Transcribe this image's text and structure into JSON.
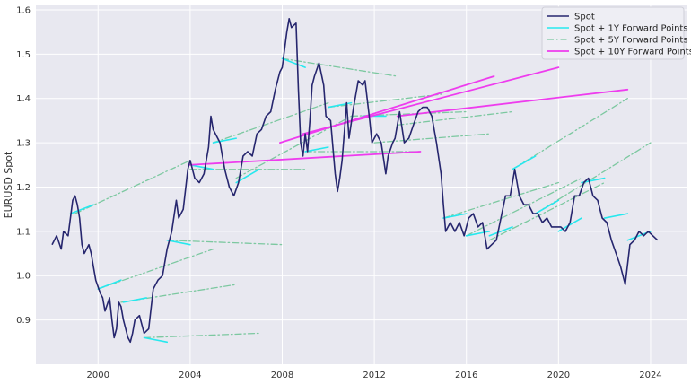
{
  "chart_data": {
    "type": "line",
    "title": "",
    "xlabel": "",
    "ylabel": "EURUSD Spot",
    "xlim": [
      1997.3,
      2025.6
    ],
    "ylim": [
      0.8,
      1.61
    ],
    "xticks": [
      2000,
      2004,
      2008,
      2012,
      2016,
      2020,
      2024
    ],
    "yticks": [
      0.9,
      1.0,
      1.1,
      1.2,
      1.3,
      1.4,
      1.5,
      1.6
    ],
    "xtick_labels": [
      "2000",
      "2004",
      "2008",
      "2012",
      "2016",
      "2020",
      "2024"
    ],
    "ytick_labels": [
      "0.9",
      "1.0",
      "1.1",
      "1.2",
      "1.3",
      "1.4",
      "1.5",
      "1.6"
    ],
    "grid": true,
    "background": "#e8e8f0",
    "legend_position": "top-right",
    "legend": [
      {
        "label": "Spot",
        "color": "#26266e",
        "style": "solid"
      },
      {
        "label": "Spot + 1Y Forward Points",
        "color": "#26e8ee",
        "style": "solid"
      },
      {
        "label": "Spot + 5Y Forward Points",
        "color": "#7cc8a0",
        "style": "dashdot"
      },
      {
        "label": "Spot + 10Y Forward Points",
        "color": "#ee3cee",
        "style": "solid"
      }
    ],
    "series": [
      {
        "name": "Spot",
        "color": "#26266e",
        "x": [
          1998.0,
          1998.2,
          1998.4,
          1998.5,
          1998.7,
          1998.9,
          1999.0,
          1999.1,
          1999.2,
          1999.3,
          1999.4,
          1999.6,
          1999.7,
          1999.8,
          1999.9,
          2000.1,
          2000.2,
          2000.3,
          2000.5,
          2000.6,
          2000.7,
          2000.8,
          2000.9,
          2001.0,
          2001.1,
          2001.3,
          2001.4,
          2001.5,
          2001.6,
          2001.8,
          2001.9,
          2002.0,
          2002.2,
          2002.4,
          2002.5,
          2002.6,
          2002.8,
          2003.0,
          2003.2,
          2003.4,
          2003.5,
          2003.7,
          2003.9,
          2004.0,
          2004.2,
          2004.4,
          2004.6,
          2004.8,
          2004.9,
          2005.0,
          2005.3,
          2005.5,
          2005.7,
          2005.9,
          2006.1,
          2006.3,
          2006.5,
          2006.7,
          2006.9,
          2007.1,
          2007.3,
          2007.5,
          2007.7,
          2007.9,
          2008.0,
          2008.2,
          2008.3,
          2008.4,
          2008.6,
          2008.7,
          2008.8,
          2008.9,
          2009.0,
          2009.1,
          2009.2,
          2009.3,
          2009.4,
          2009.6,
          2009.8,
          2009.9,
          2010.1,
          2010.3,
          2010.4,
          2010.5,
          2010.6,
          2010.8,
          2010.9,
          2011.1,
          2011.3,
          2011.5,
          2011.6,
          2011.8,
          2011.9,
          2012.1,
          2012.3,
          2012.5,
          2012.6,
          2012.8,
          2012.9,
          2013.1,
          2013.3,
          2013.5,
          2013.7,
          2013.9,
          2014.1,
          2014.3,
          2014.5,
          2014.7,
          2014.9,
          2015.0,
          2015.1,
          2015.3,
          2015.5,
          2015.7,
          2015.9,
          2016.1,
          2016.3,
          2016.5,
          2016.7,
          2016.9,
          2017.1,
          2017.3,
          2017.5,
          2017.7,
          2017.9,
          2018.1,
          2018.3,
          2018.5,
          2018.7,
          2018.9,
          2019.1,
          2019.3,
          2019.5,
          2019.7,
          2019.9,
          2020.1,
          2020.3,
          2020.5,
          2020.7,
          2020.9,
          2021.1,
          2021.3,
          2021.5,
          2021.7,
          2021.9,
          2022.1,
          2022.3,
          2022.5,
          2022.7,
          2022.9,
          2023.1,
          2023.3,
          2023.5,
          2023.7,
          2023.9,
          2024.1,
          2024.3
        ],
        "y": [
          1.07,
          1.09,
          1.06,
          1.1,
          1.09,
          1.17,
          1.18,
          1.16,
          1.13,
          1.07,
          1.05,
          1.07,
          1.05,
          1.02,
          0.99,
          0.96,
          0.95,
          0.92,
          0.95,
          0.9,
          0.86,
          0.88,
          0.94,
          0.93,
          0.9,
          0.86,
          0.85,
          0.87,
          0.9,
          0.91,
          0.89,
          0.87,
          0.88,
          0.97,
          0.98,
          0.99,
          1.0,
          1.06,
          1.1,
          1.17,
          1.13,
          1.15,
          1.24,
          1.26,
          1.22,
          1.21,
          1.23,
          1.29,
          1.36,
          1.33,
          1.3,
          1.24,
          1.2,
          1.18,
          1.21,
          1.27,
          1.28,
          1.27,
          1.32,
          1.33,
          1.36,
          1.37,
          1.42,
          1.46,
          1.47,
          1.55,
          1.58,
          1.56,
          1.57,
          1.42,
          1.3,
          1.27,
          1.32,
          1.28,
          1.35,
          1.43,
          1.45,
          1.48,
          1.43,
          1.36,
          1.35,
          1.23,
          1.19,
          1.22,
          1.26,
          1.39,
          1.31,
          1.38,
          1.44,
          1.43,
          1.44,
          1.35,
          1.3,
          1.32,
          1.3,
          1.23,
          1.27,
          1.3,
          1.31,
          1.37,
          1.3,
          1.31,
          1.34,
          1.37,
          1.38,
          1.38,
          1.36,
          1.3,
          1.23,
          1.16,
          1.1,
          1.12,
          1.1,
          1.12,
          1.09,
          1.13,
          1.14,
          1.11,
          1.12,
          1.06,
          1.07,
          1.08,
          1.13,
          1.18,
          1.18,
          1.24,
          1.18,
          1.16,
          1.16,
          1.14,
          1.14,
          1.12,
          1.13,
          1.11,
          1.11,
          1.11,
          1.1,
          1.12,
          1.18,
          1.18,
          1.21,
          1.22,
          1.18,
          1.17,
          1.13,
          1.12,
          1.08,
          1.05,
          1.02,
          0.98,
          1.07,
          1.08,
          1.1,
          1.09,
          1.1,
          1.09,
          1.08
        ]
      }
    ],
    "forward_segments": {
      "one_year": [
        [
          [
            1998.8,
            1.14
          ],
          [
            1999.8,
            1.16
          ]
        ],
        [
          [
            2000.0,
            0.97
          ],
          [
            2001.0,
            0.99
          ]
        ],
        [
          [
            2001.1,
            0.94
          ],
          [
            2002.1,
            0.95
          ]
        ],
        [
          [
            2002.0,
            0.86
          ],
          [
            2003.0,
            0.85
          ]
        ],
        [
          [
            2003.0,
            1.08
          ],
          [
            2004.0,
            1.07
          ]
        ],
        [
          [
            2004.0,
            1.25
          ],
          [
            2005.0,
            1.24
          ]
        ],
        [
          [
            2005.0,
            1.3
          ],
          [
            2006.0,
            1.31
          ]
        ],
        [
          [
            2006.0,
            1.21
          ],
          [
            2007.0,
            1.24
          ]
        ],
        [
          [
            2008.0,
            1.49
          ],
          [
            2009.0,
            1.47
          ]
        ],
        [
          [
            2009.0,
            1.28
          ],
          [
            2010.0,
            1.29
          ]
        ],
        [
          [
            2010.0,
            1.38
          ],
          [
            2011.0,
            1.39
          ]
        ],
        [
          [
            2011.5,
            1.36
          ],
          [
            2012.5,
            1.36
          ]
        ],
        [
          [
            2015.0,
            1.13
          ],
          [
            2016.0,
            1.14
          ]
        ],
        [
          [
            2016.0,
            1.09
          ],
          [
            2017.0,
            1.1
          ]
        ],
        [
          [
            2017.0,
            1.09
          ],
          [
            2018.0,
            1.11
          ]
        ],
        [
          [
            2018.0,
            1.24
          ],
          [
            2019.0,
            1.27
          ]
        ],
        [
          [
            2019.0,
            1.14
          ],
          [
            2020.0,
            1.17
          ]
        ],
        [
          [
            2020.0,
            1.1
          ],
          [
            2021.0,
            1.13
          ]
        ],
        [
          [
            2021.0,
            1.21
          ],
          [
            2022.0,
            1.22
          ]
        ],
        [
          [
            2022.0,
            1.13
          ],
          [
            2023.0,
            1.14
          ]
        ],
        [
          [
            2023.0,
            1.08
          ],
          [
            2024.0,
            1.1
          ]
        ]
      ],
      "five_year": [
        [
          [
            1999.0,
            1.14
          ],
          [
            2004.0,
            1.26
          ]
        ],
        [
          [
            2000.0,
            0.97
          ],
          [
            2005.0,
            1.06
          ]
        ],
        [
          [
            2001.0,
            0.94
          ],
          [
            2006.0,
            0.98
          ]
        ],
        [
          [
            2002.0,
            0.86
          ],
          [
            2007.0,
            0.87
          ]
        ],
        [
          [
            2003.0,
            1.08
          ],
          [
            2008.0,
            1.07
          ]
        ],
        [
          [
            2004.0,
            1.24
          ],
          [
            2009.0,
            1.24
          ]
        ],
        [
          [
            2005.0,
            1.3
          ],
          [
            2010.0,
            1.39
          ]
        ],
        [
          [
            2006.0,
            1.22
          ],
          [
            2011.0,
            1.36
          ]
        ],
        [
          [
            2008.0,
            1.49
          ],
          [
            2013.0,
            1.45
          ]
        ],
        [
          [
            2009.0,
            1.28
          ],
          [
            2014.0,
            1.28
          ]
        ],
        [
          [
            2010.0,
            1.38
          ],
          [
            2015.0,
            1.41
          ]
        ],
        [
          [
            2011.0,
            1.36
          ],
          [
            2016.0,
            1.37
          ]
        ],
        [
          [
            2012.0,
            1.3
          ],
          [
            2017.0,
            1.32
          ]
        ],
        [
          [
            2013.0,
            1.34
          ],
          [
            2018.0,
            1.37
          ]
        ],
        [
          [
            2015.0,
            1.13
          ],
          [
            2020.0,
            1.21
          ]
        ],
        [
          [
            2016.0,
            1.09
          ],
          [
            2021.0,
            1.22
          ]
        ],
        [
          [
            2017.0,
            1.08
          ],
          [
            2022.0,
            1.21
          ]
        ],
        [
          [
            2018.0,
            1.24
          ],
          [
            2023.0,
            1.4
          ]
        ],
        [
          [
            2019.0,
            1.14
          ],
          [
            2024.0,
            1.3
          ]
        ]
      ],
      "ten_year": [
        [
          [
            2004.0,
            1.25
          ],
          [
            2014.0,
            1.28
          ]
        ],
        [
          [
            2007.9,
            1.3
          ],
          [
            2017.2,
            1.45
          ]
        ],
        [
          [
            2008.9,
            1.32
          ],
          [
            2020.0,
            1.47
          ]
        ],
        [
          [
            2013.0,
            1.36
          ],
          [
            2023.0,
            1.42
          ]
        ]
      ]
    }
  }
}
